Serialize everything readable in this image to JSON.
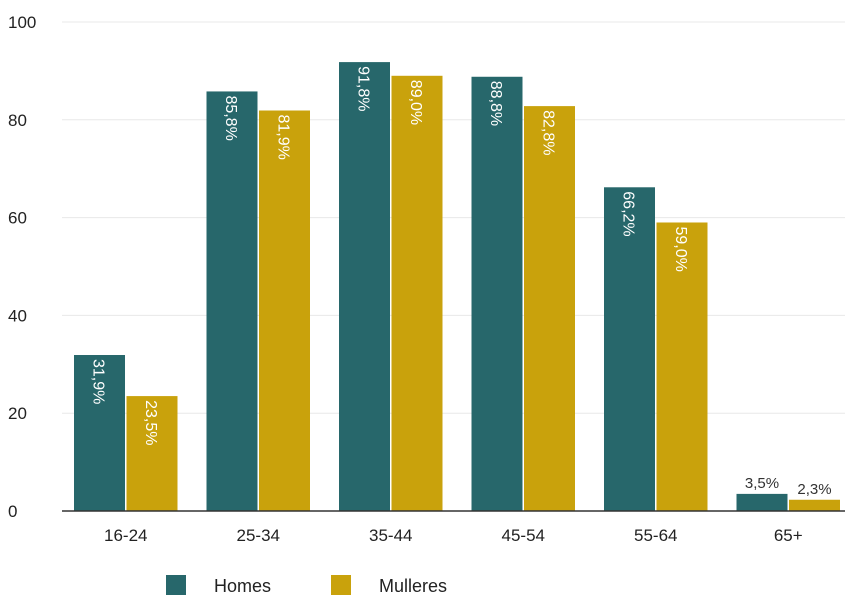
{
  "chart_data": {
    "type": "bar",
    "title": "",
    "xlabel": "",
    "ylabel": "",
    "ylim": [
      0,
      100
    ],
    "yticks": [
      "0",
      "20",
      "40",
      "60",
      "80",
      "100"
    ],
    "grid": true,
    "legend_position": "bottom",
    "categories": [
      "16-24",
      "25-34",
      "35-44",
      "45-54",
      "55-64",
      "65+"
    ],
    "series": [
      {
        "name": "Homes",
        "color": "#27676b",
        "values": [
          31.9,
          85.8,
          91.8,
          88.8,
          66.2,
          3.5
        ],
        "labels": [
          "31,9%",
          "85,8%",
          "91,8%",
          "88,8%",
          "66,2%",
          "3,5%"
        ]
      },
      {
        "name": "Mulleres",
        "color": "#c9a20c",
        "values": [
          23.5,
          81.9,
          89.0,
          82.8,
          59.0,
          2.3
        ],
        "labels": [
          "23,5%",
          "81,9%",
          "89,0%",
          "82,8%",
          "59,0%",
          "2,3%"
        ]
      }
    ]
  }
}
